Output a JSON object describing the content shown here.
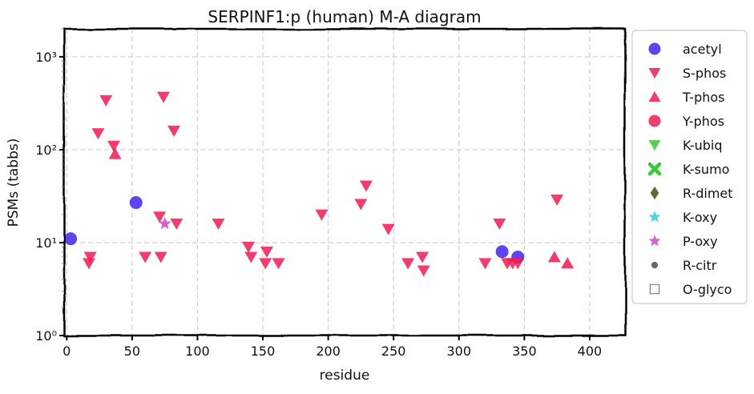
{
  "chart_data": {
    "type": "scatter",
    "title": "SERPINF1:p (human) M-A diagram",
    "xlabel": "residue",
    "ylabel": "PSMs (tabbs)",
    "xlim": [
      -2,
      427
    ],
    "ylim": [
      1,
      2000
    ],
    "yscale": "log",
    "grid": true,
    "legend_position": "right",
    "xticks": [
      0,
      50,
      100,
      150,
      200,
      250,
      300,
      350,
      400
    ],
    "xtick_labels": [
      "0",
      "50",
      "100",
      "150",
      "200",
      "250",
      "300",
      "350",
      "400"
    ],
    "yticks": [
      1,
      10,
      100,
      1000
    ],
    "ytick_labels": [
      "10⁰",
      "10¹",
      "10²",
      "10³"
    ],
    "legend": [
      {
        "label": "acetyl",
        "marker": "circle",
        "color": "#4422ee"
      },
      {
        "label": "S-phos",
        "marker": "triangle-down",
        "color": "#ee1a55"
      },
      {
        "label": "T-phos",
        "marker": "triangle-up",
        "color": "#ee1a55"
      },
      {
        "label": "Y-phos",
        "marker": "circle",
        "color": "#ee1a55"
      },
      {
        "label": "K-ubiq",
        "marker": "triangle-down",
        "color": "#33cc33"
      },
      {
        "label": "K-sumo",
        "marker": "x",
        "color": "#33cc33"
      },
      {
        "label": "R-dimet",
        "marker": "diamond",
        "color": "#666633"
      },
      {
        "label": "K-oxy",
        "marker": "star",
        "color": "#33cccc"
      },
      {
        "label": "P-oxy",
        "marker": "star",
        "color": "#cc44cc"
      },
      {
        "label": "R-citr",
        "marker": "dot",
        "color": "#666666"
      },
      {
        "label": "O-glyco",
        "marker": "square-open",
        "color": "#888888"
      }
    ],
    "series": [
      {
        "name": "acetyl",
        "marker": "circle",
        "color": "#4422ee",
        "points": [
          [
            3,
            11
          ],
          [
            53,
            27
          ],
          [
            333,
            8
          ],
          [
            345,
            7
          ]
        ]
      },
      {
        "name": "S-phos",
        "marker": "triangle-down",
        "color": "#ee1a55",
        "points": [
          [
            18,
            7
          ],
          [
            17,
            6
          ],
          [
            24,
            150
          ],
          [
            30,
            340
          ],
          [
            36,
            110
          ],
          [
            60,
            7
          ],
          [
            71,
            19
          ],
          [
            72,
            7
          ],
          [
            74,
            370
          ],
          [
            82,
            160
          ],
          [
            84,
            16
          ],
          [
            116,
            16
          ],
          [
            139,
            9
          ],
          [
            141,
            7
          ],
          [
            153,
            8
          ],
          [
            152,
            6
          ],
          [
            162,
            6
          ],
          [
            195,
            20
          ],
          [
            225,
            26
          ],
          [
            229,
            41
          ],
          [
            246,
            14
          ],
          [
            261,
            6
          ],
          [
            272,
            7
          ],
          [
            273,
            5
          ],
          [
            320,
            6
          ],
          [
            331,
            16
          ],
          [
            337,
            6
          ],
          [
            341,
            6
          ],
          [
            345,
            6
          ],
          [
            375,
            29
          ]
        ]
      },
      {
        "name": "T-phos",
        "marker": "triangle-up",
        "color": "#ee1a55",
        "points": [
          [
            37,
            90
          ],
          [
            373,
            7
          ],
          [
            383,
            6
          ]
        ]
      },
      {
        "name": "P-oxy",
        "marker": "star",
        "color": "#cc44cc",
        "points": [
          [
            75,
            16
          ]
        ]
      }
    ]
  }
}
